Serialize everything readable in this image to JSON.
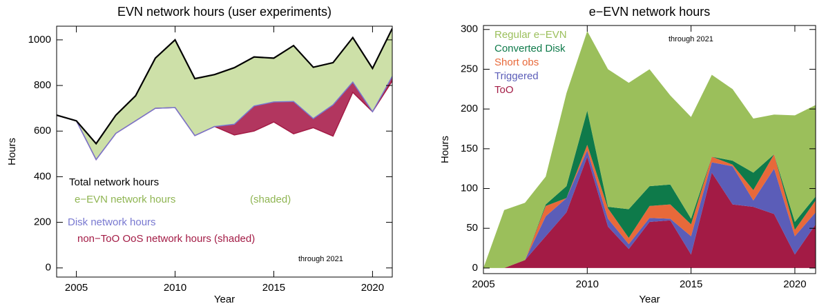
{
  "chart_data": [
    {
      "type": "line",
      "title": "EVN network hours (user experiments)",
      "xlabel": "Year",
      "ylabel": "Hours",
      "x": [
        2004,
        2005,
        2006,
        2007,
        2008,
        2009,
        2010,
        2011,
        2012,
        2013,
        2014,
        2015,
        2016,
        2017,
        2018,
        2019,
        2020,
        2021
      ],
      "series": [
        {
          "name": "Total network hours",
          "color": "#000000",
          "fill": "#cde0a8",
          "values": [
            670,
            645,
            545,
            670,
            755,
            920,
            1000,
            830,
            848,
            878,
            925,
            920,
            975,
            880,
            900,
            1010,
            875,
            1050
          ]
        },
        {
          "name": "Disk network hours",
          "color": "#7878d0",
          "fill": "#b2365f",
          "values": [
            670,
            645,
            475,
            590,
            645,
            700,
            703,
            580,
            620,
            630,
            710,
            728,
            730,
            655,
            715,
            815,
            685,
            840
          ]
        },
        {
          "name": "non−ToO OoS network hours (shaded)",
          "color": "#a31b45",
          "values": [
            670,
            645,
            475,
            590,
            645,
            700,
            703,
            580,
            620,
            583,
            600,
            640,
            588,
            615,
            578,
            770,
            685,
            820
          ]
        }
      ],
      "annotations": [
        {
          "text": "e−EVN network hours",
          "color": "#8fb552"
        },
        {
          "text": "(shaded)",
          "color": "#8fb552"
        },
        {
          "text": "through 2021",
          "color": "#000000"
        }
      ],
      "xlim": [
        2004,
        2021
      ],
      "xticks": [
        2005,
        2010,
        2015,
        2020
      ],
      "ylim": [
        -40,
        1060
      ],
      "yticks": [
        0,
        200,
        400,
        600,
        800,
        1000
      ]
    },
    {
      "type": "stacked_area",
      "title": "e−EVN network hours",
      "xlabel": "Year",
      "ylabel": "Hours",
      "x": [
        2005,
        2006,
        2007,
        2008,
        2009,
        2010,
        2011,
        2012,
        2013,
        2014,
        2015,
        2016,
        2017,
        2018,
        2019,
        2020,
        2021
      ],
      "series": [
        {
          "name": "ToO",
          "color": "#a31b45",
          "values": [
            0,
            0,
            10,
            40,
            70,
            140,
            52,
            24,
            58,
            60,
            17,
            120,
            80,
            77,
            68,
            17,
            55
          ]
        },
        {
          "name": "Triggered",
          "color": "#5b5db8",
          "values": [
            0,
            0,
            0,
            25,
            18,
            8,
            10,
            6,
            5,
            2,
            23,
            13,
            48,
            8,
            57,
            23,
            15
          ]
        },
        {
          "name": "Short obs",
          "color": "#e8693a",
          "values": [
            0,
            0,
            0,
            13,
            0,
            7,
            13,
            8,
            15,
            18,
            15,
            7,
            2,
            13,
            18,
            8,
            15
          ]
        },
        {
          "name": "Converted Disk",
          "color": "#0e7a4a",
          "values": [
            0,
            0,
            0,
            2,
            15,
            43,
            2,
            36,
            25,
            25,
            7,
            0,
            5,
            22,
            0,
            10,
            5
          ]
        },
        {
          "name": "Regular e−EVN",
          "color": "#9bbf5b",
          "values": [
            0,
            73,
            72,
            35,
            117,
            100,
            173,
            159,
            147,
            112,
            128,
            103,
            90,
            68,
            50,
            134,
            115
          ]
        }
      ],
      "annotations": [
        {
          "text": "through 2021",
          "color": "#000000"
        }
      ],
      "xlim": [
        2005,
        2021
      ],
      "xticks": [
        2005,
        2010,
        2015,
        2020
      ],
      "ylim": [
        -7,
        305
      ],
      "yticks": [
        0,
        50,
        100,
        150,
        200,
        250,
        300
      ]
    }
  ]
}
